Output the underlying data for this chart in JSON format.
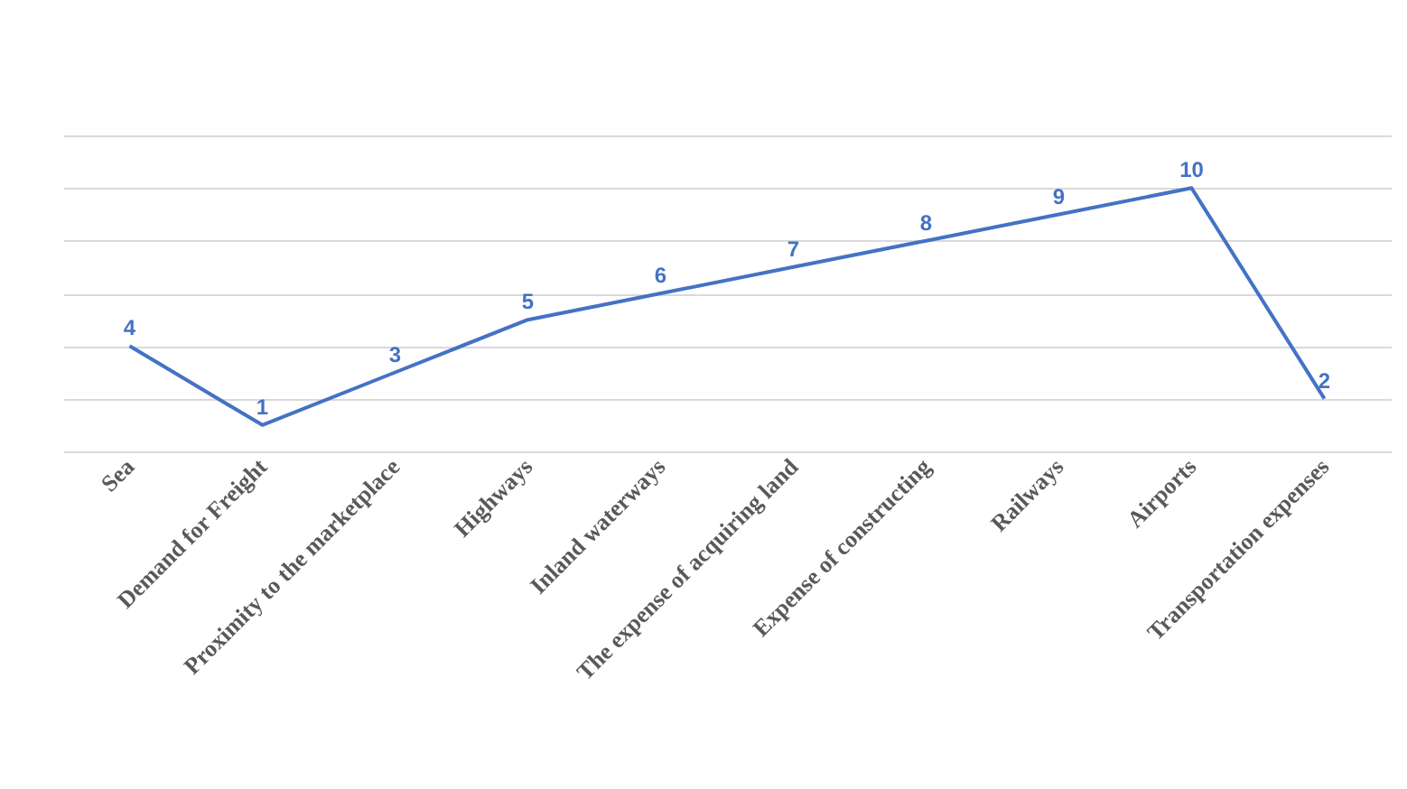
{
  "chart_data": {
    "type": "line",
    "categories": [
      "Sea",
      "Demand for Freight",
      "Proximity to the marketplace",
      "Highways",
      "Inland waterways",
      "The expense of acquiring land",
      "Expense of constructing",
      "Railways",
      "Airports",
      "Transportation expenses"
    ],
    "series": [
      {
        "color": "#4472c4",
        "values": [
          4,
          1,
          3,
          5,
          6,
          7,
          8,
          9,
          10,
          2
        ]
      }
    ],
    "ylim": [
      0,
      12
    ],
    "yticks": [
      {
        "value": 0,
        "label": null
      },
      {
        "value": 2,
        "label": null
      },
      {
        "value": 4,
        "label": null
      },
      {
        "value": 6,
        "label": null
      },
      {
        "value": 8,
        "label": null
      },
      {
        "value": 10,
        "label": null
      },
      {
        "value": 12,
        "label": null
      }
    ],
    "grid": "y",
    "tick_labels": "x",
    "data_labels": true
  }
}
